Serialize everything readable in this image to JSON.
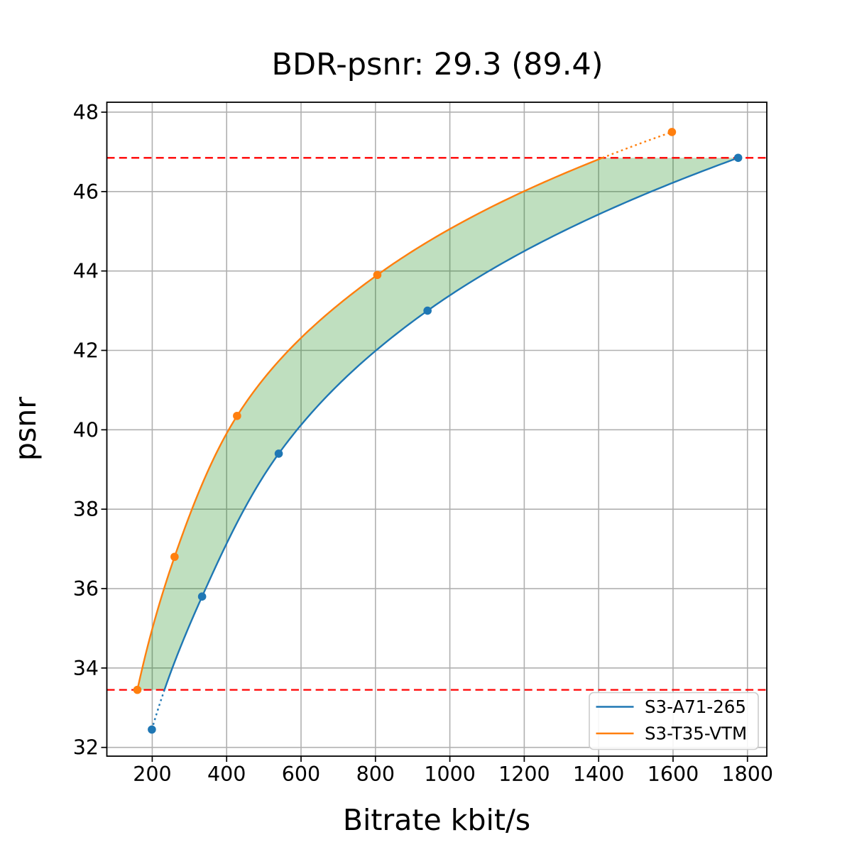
{
  "chart_data": {
    "type": "line",
    "title": "BDR-psnr: 29.3 (89.4)",
    "xlabel": "Bitrate kbit/s",
    "ylabel": "psnr",
    "xlim": [
      78,
      1852
    ],
    "ylim": [
      31.78,
      48.25
    ],
    "x_ticks": [
      200,
      400,
      600,
      800,
      1000,
      1200,
      1400,
      1600,
      1800
    ],
    "y_ticks": [
      32,
      34,
      36,
      38,
      40,
      42,
      44,
      46,
      48
    ],
    "grid": true,
    "grid_color": "#b0b0b0",
    "legend_position": "lower right",
    "series": [
      {
        "name": "S3-A71-265",
        "color": "#1f77b4",
        "x": [
          199,
          334,
          540,
          940,
          1775
        ],
        "y": [
          32.45,
          35.8,
          39.4,
          43.0,
          46.85
        ]
      },
      {
        "name": "S3-T35-VTM",
        "color": "#ff7f0e",
        "x": [
          160,
          260,
          428,
          805,
          1597
        ],
        "y": [
          33.45,
          36.8,
          40.35,
          43.9,
          47.5
        ]
      }
    ],
    "overlap_interval": {
      "psnr_low": 33.45,
      "psnr_high": 46.85,
      "line_color": "#ff0000",
      "line_style": "dashed",
      "note": "segments of curves outside this interval are drawn dotted"
    },
    "shaded_region": {
      "color": "#008000",
      "opacity": 0.25,
      "description": "area between the two rate-distortion curves inside the overlap interval"
    }
  }
}
